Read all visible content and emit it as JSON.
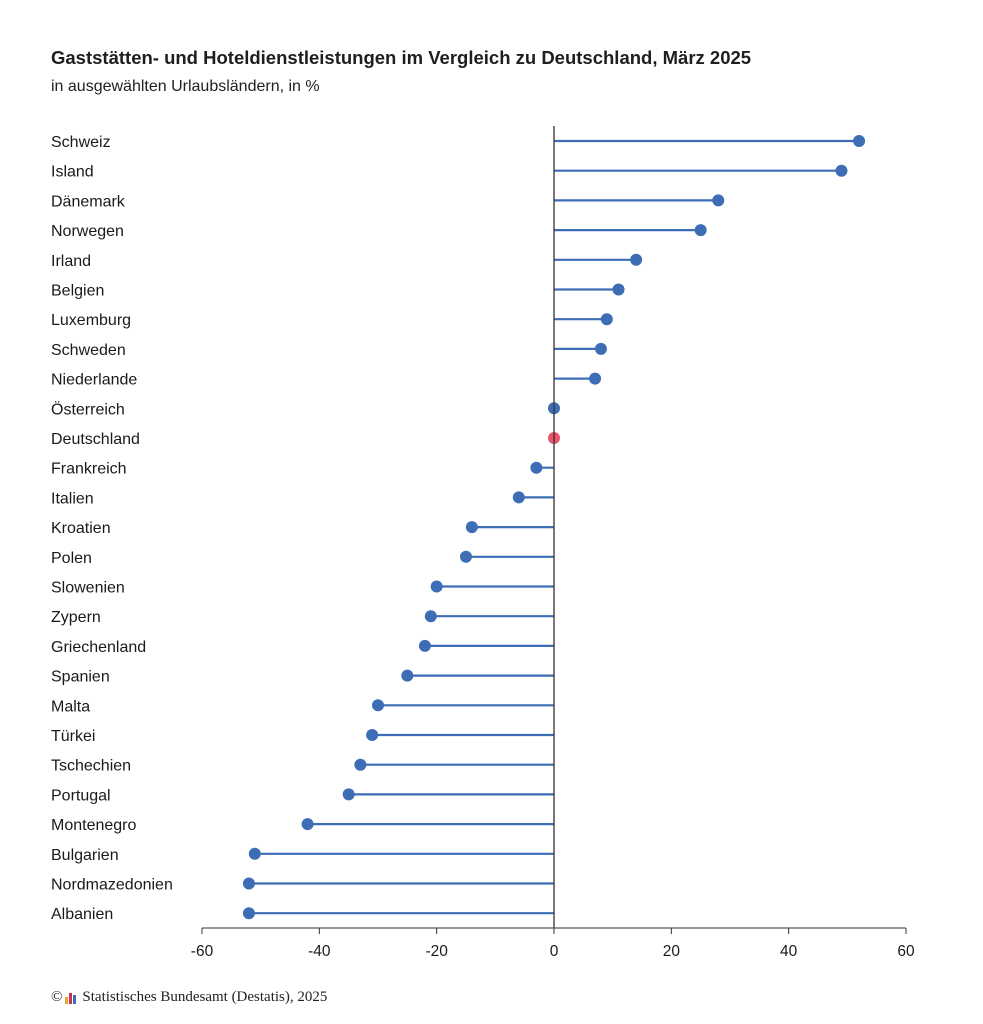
{
  "header": {
    "title": "Gaststätten- und Hoteldienstleistungen im Vergleich zu Deutschland, März 2025",
    "subtitle": "in ausgewählten Urlaubsländern, in %"
  },
  "footer": {
    "copyright_symbol": "©",
    "source": "Statistisches Bundesamt (Destatis), 2025",
    "logo_colors": [
      "#e8a53a",
      "#d2334b",
      "#3c6db5"
    ]
  },
  "chart_data": {
    "type": "lollipop",
    "title": "Gaststätten- und Hoteldienstleistungen im Vergleich zu Deutschland, März 2025",
    "subtitle": "in ausgewählten Urlaubsländern, in %",
    "categories": [
      "Schweiz",
      "Island",
      "Dänemark",
      "Norwegen",
      "Irland",
      "Belgien",
      "Luxemburg",
      "Schweden",
      "Niederlande",
      "Österreich",
      "Deutschland",
      "Frankreich",
      "Italien",
      "Kroatien",
      "Polen",
      "Slowenien",
      "Zypern",
      "Griechenland",
      "Spanien",
      "Malta",
      "Türkei",
      "Tschechien",
      "Portugal",
      "Montenegro",
      "Bulgarien",
      "Nordmazedonien",
      "Albanien"
    ],
    "values": [
      52,
      49,
      28,
      25,
      14,
      11,
      9,
      8,
      7,
      0,
      0,
      -3,
      -6,
      -14,
      -15,
      -20,
      -21,
      -22,
      -25,
      -30,
      -31,
      -33,
      -35,
      -42,
      -51,
      -52,
      -52
    ],
    "highlight": "Deutschland",
    "xlim": [
      -60,
      60
    ],
    "xticks": [
      -60,
      -40,
      -20,
      0,
      20,
      40,
      60
    ],
    "xlabel": "",
    "ylabel": "",
    "grid": false,
    "colors": {
      "series": "#3c6db5",
      "highlight": "#e9546b",
      "axis": "#333333"
    }
  }
}
